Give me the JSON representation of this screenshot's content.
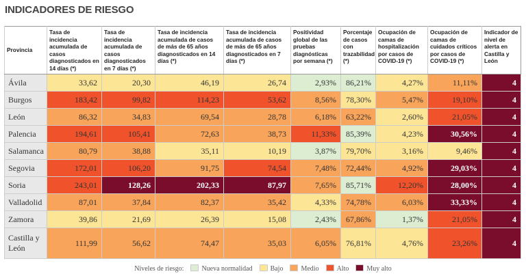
{
  "header": {
    "title": "INDICADORES DE RIESGO"
  },
  "table": {
    "columns": [
      "Provincia",
      "Tasa de incidencia acumulada de casos diagnosticados en 14 días (*)",
      "Tasa de incidencia acumulada de casos diagnosticados en 7 días (*)",
      "Tasa de incidencia acumulada de casos de más de 65 años diagnosticados en 14 días (*)",
      "Tasa de incidencia acumulada de casos de más de 65 años diagnosticados en 7 días (*)",
      "Positividad global de las pruebas diagnósticas por semana (*)",
      "Porcentaje de casos con trazabilidad (*)",
      "Ocupación de camas de hospitalización por casos de COVID-19 (*)",
      "Ocupación de camas de cuidados críticos por casos de COVID-19 (*)",
      "Indicador de nivel de alerta en Castilla y León"
    ],
    "rows": [
      [
        "Ávila",
        {
          "text": "33,62",
          "color": "#fde596"
        },
        {
          "text": "20,30",
          "color": "#fde596"
        },
        {
          "text": "46,19",
          "color": "#fde596"
        },
        {
          "text": "26,74",
          "color": "#fde596"
        },
        {
          "text": "2,93%",
          "color": "#dcedd2"
        },
        {
          "text": "86,21%",
          "color": "#dcedd2"
        },
        {
          "text": "4,27%",
          "color": "#fde596"
        },
        {
          "text": "11,11%",
          "color": "#f8a45a"
        },
        {
          "text": "4",
          "color": "#7a0d2c"
        }
      ],
      [
        "Burgos",
        {
          "text": "183,42",
          "color": "#f0532b"
        },
        {
          "text": "99,82",
          "color": "#f0532b"
        },
        {
          "text": "114,23",
          "color": "#f0532b"
        },
        {
          "text": "53,62",
          "color": "#f0532b"
        },
        {
          "text": "8,56%",
          "color": "#f8a45a"
        },
        {
          "text": "78,30%",
          "color": "#fde596"
        },
        {
          "text": "5,47%",
          "color": "#f8a45a"
        },
        {
          "text": "19,10%",
          "color": "#f0532b"
        },
        {
          "text": "4",
          "color": "#7a0d2c"
        }
      ],
      [
        "León",
        {
          "text": "86,32",
          "color": "#f8a45a"
        },
        {
          "text": "34,83",
          "color": "#f8a45a"
        },
        {
          "text": "69,54",
          "color": "#f8a45a"
        },
        {
          "text": "28,78",
          "color": "#f8a45a"
        },
        {
          "text": "6,18%",
          "color": "#f8a45a"
        },
        {
          "text": "63,22%",
          "color": "#f8a45a"
        },
        {
          "text": "2,60%",
          "color": "#fde596"
        },
        {
          "text": "21,05%",
          "color": "#f0532b"
        },
        {
          "text": "4",
          "color": "#7a0d2c"
        }
      ],
      [
        "Palencia",
        {
          "text": "194,61",
          "color": "#f0532b"
        },
        {
          "text": "105,41",
          "color": "#f0532b"
        },
        {
          "text": "72,63",
          "color": "#f8a45a"
        },
        {
          "text": "38,73",
          "color": "#f8a45a"
        },
        {
          "text": "11,33%",
          "color": "#f0532b"
        },
        {
          "text": "85,39%",
          "color": "#dcedd2"
        },
        {
          "text": "4,23%",
          "color": "#fde596"
        },
        {
          "text": "30,56%",
          "color": "#7a0d2c"
        },
        {
          "text": "4",
          "color": "#7a0d2c"
        }
      ],
      [
        "Salamanca",
        {
          "text": "80,79",
          "color": "#f8a45a"
        },
        {
          "text": "38,88",
          "color": "#f8a45a"
        },
        {
          "text": "35,11",
          "color": "#fde596"
        },
        {
          "text": "10,19",
          "color": "#fde596"
        },
        {
          "text": "3,87%",
          "color": "#dcedd2"
        },
        {
          "text": "79,70%",
          "color": "#fde596"
        },
        {
          "text": "3,16%",
          "color": "#fde596"
        },
        {
          "text": "9,46%",
          "color": "#fde596"
        },
        {
          "text": "4",
          "color": "#7a0d2c"
        }
      ],
      [
        "Segovia",
        {
          "text": "172,01",
          "color": "#f0532b"
        },
        {
          "text": "106,20",
          "color": "#f0532b"
        },
        {
          "text": "91,75",
          "color": "#f8a45a"
        },
        {
          "text": "74,54",
          "color": "#f0532b"
        },
        {
          "text": "7,48%",
          "color": "#f8a45a"
        },
        {
          "text": "72,44%",
          "color": "#f8a45a"
        },
        {
          "text": "4,92%",
          "color": "#f8a45a"
        },
        {
          "text": "29,03%",
          "color": "#7a0d2c"
        },
        {
          "text": "4",
          "color": "#7a0d2c"
        }
      ],
      [
        "Soria",
        {
          "text": "243,01",
          "color": "#f0532b"
        },
        {
          "text": "128,26",
          "color": "#7a0d2c"
        },
        {
          "text": "202,33",
          "color": "#7a0d2c"
        },
        {
          "text": "87,97",
          "color": "#7a0d2c"
        },
        {
          "text": "7,65%",
          "color": "#f8a45a"
        },
        {
          "text": "85,71%",
          "color": "#dcedd2"
        },
        {
          "text": "12,20%",
          "color": "#f0532b"
        },
        {
          "text": "28,00%",
          "color": "#7a0d2c"
        },
        {
          "text": "4",
          "color": "#7a0d2c"
        }
      ],
      [
        "Valladolid",
        {
          "text": "87,01",
          "color": "#f8a45a"
        },
        {
          "text": "37,84",
          "color": "#f8a45a"
        },
        {
          "text": "82,37",
          "color": "#f8a45a"
        },
        {
          "text": "35,42",
          "color": "#f8a45a"
        },
        {
          "text": "4,33%",
          "color": "#fde596"
        },
        {
          "text": "74,78%",
          "color": "#f8a45a"
        },
        {
          "text": "6,03%",
          "color": "#f8a45a"
        },
        {
          "text": "33,33%",
          "color": "#7a0d2c"
        },
        {
          "text": "4",
          "color": "#7a0d2c"
        }
      ],
      [
        "Zamora",
        {
          "text": "39,86",
          "color": "#fde596"
        },
        {
          "text": "21,69",
          "color": "#fde596"
        },
        {
          "text": "26,39",
          "color": "#fde596"
        },
        {
          "text": "15,08",
          "color": "#fde596"
        },
        {
          "text": "2,43%",
          "color": "#dcedd2"
        },
        {
          "text": "67,86%",
          "color": "#f8a45a"
        },
        {
          "text": "1,37%",
          "color": "#dcedd2"
        },
        {
          "text": "21,05%",
          "color": "#f0532b"
        },
        {
          "text": "4",
          "color": "#7a0d2c"
        }
      ],
      [
        "Castilla y León",
        {
          "text": "111,99",
          "color": "#f8a45a"
        },
        {
          "text": "56,62",
          "color": "#f8a45a"
        },
        {
          "text": "74,47",
          "color": "#f8a45a"
        },
        {
          "text": "35,03",
          "color": "#f8a45a"
        },
        {
          "text": "6,05%",
          "color": "#f8a45a"
        },
        {
          "text": "76,81%",
          "color": "#fde596"
        },
        {
          "text": "4,76%",
          "color": "#fde596"
        },
        {
          "text": "23,26%",
          "color": "#f0532b"
        },
        {
          "text": "4",
          "color": "#7a0d2c"
        }
      ]
    ]
  },
  "legend": {
    "title": "Niveles de riesgo:",
    "items": [
      {
        "label": "Nueva normalidad",
        "color": "#dcedd2"
      },
      {
        "label": "Bajo",
        "color": "#fde596"
      },
      {
        "label": "Medio",
        "color": "#f8a45a"
      },
      {
        "label": "Alto",
        "color": "#f0532b"
      },
      {
        "label": "Muy alto",
        "color": "#7a0d2c"
      }
    ]
  }
}
